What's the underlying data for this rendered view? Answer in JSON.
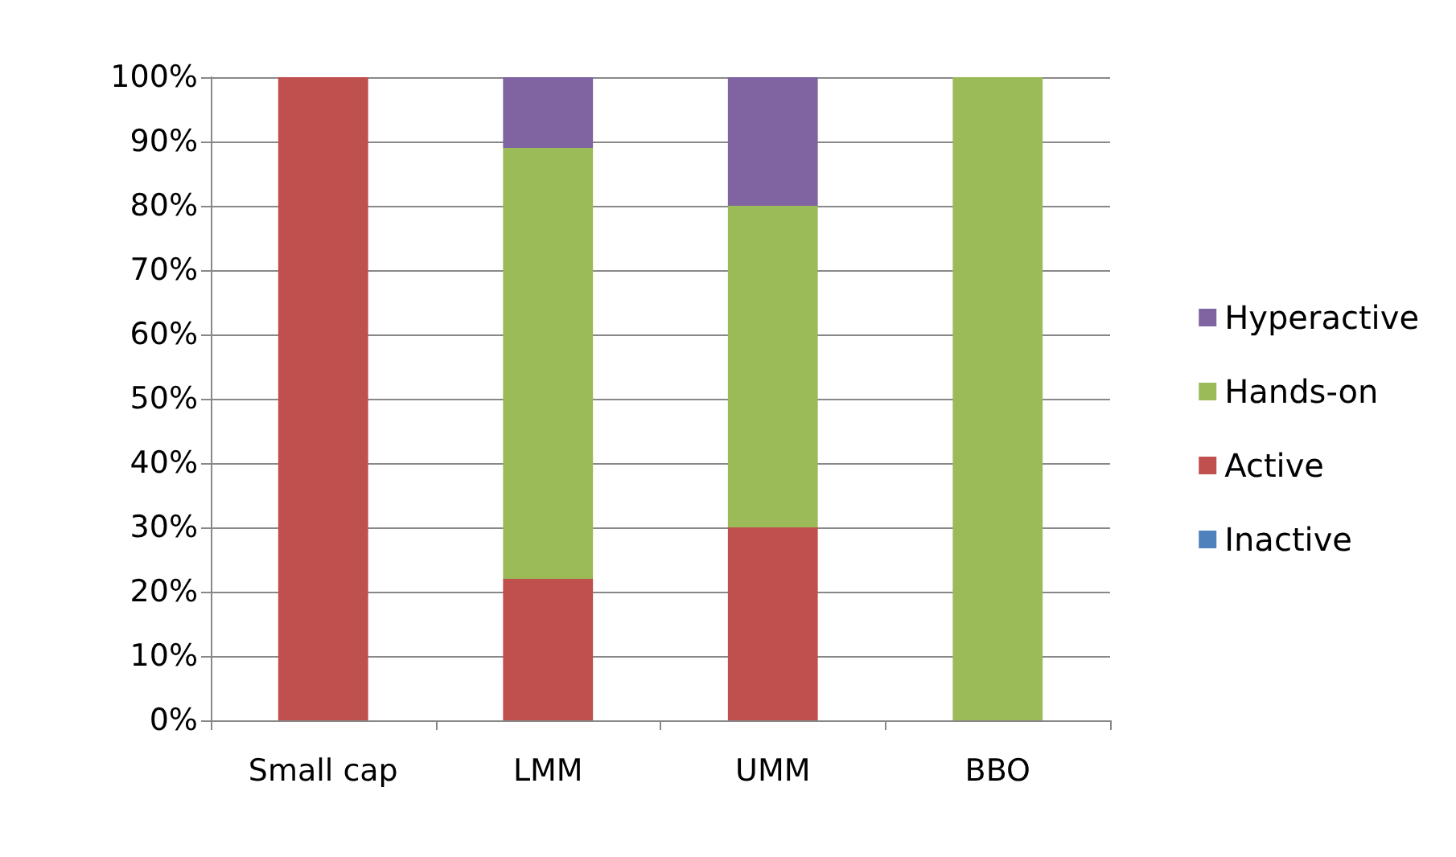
{
  "chart_data": {
    "type": "bar",
    "stacked": true,
    "categories": [
      "Small cap",
      "LMM",
      "UMM",
      "BBO"
    ],
    "series": [
      {
        "name": "Inactive",
        "color": "#4f81bd",
        "values": [
          0,
          0,
          0,
          0
        ]
      },
      {
        "name": "Active",
        "color": "#c0504d",
        "values": [
          100,
          22,
          30,
          0
        ]
      },
      {
        "name": "Hands-on",
        "color": "#9bbb59",
        "values": [
          0,
          67,
          50,
          100
        ]
      },
      {
        "name": "Hyperactive",
        "color": "#8064a2",
        "values": [
          0,
          11,
          20,
          0
        ]
      }
    ],
    "ylim": [
      0,
      100
    ],
    "yticks": [
      {
        "value": 0,
        "label": "0%"
      },
      {
        "value": 10,
        "label": "10%"
      },
      {
        "value": 20,
        "label": "20%"
      },
      {
        "value": 30,
        "label": "30%"
      },
      {
        "value": 40,
        "label": "40%"
      },
      {
        "value": 50,
        "label": "50%"
      },
      {
        "value": 60,
        "label": "60%"
      },
      {
        "value": 70,
        "label": "70%"
      },
      {
        "value": 80,
        "label": "80%"
      },
      {
        "value": 90,
        "label": "90%"
      },
      {
        "value": 100,
        "label": "100%"
      }
    ],
    "grid": "y",
    "legend": "right"
  }
}
